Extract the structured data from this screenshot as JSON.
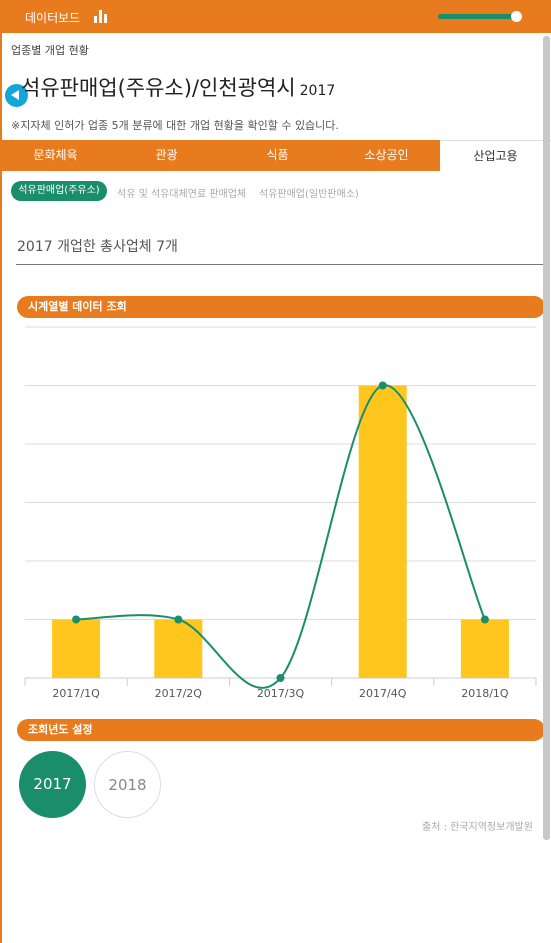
{
  "header": {
    "title": "데이터보드",
    "title_icon": "bar-chart-icon",
    "toggle_on": true
  },
  "breadcrumb": "업종별 개업 현황",
  "page": {
    "title": "석유판매업(주유소)/인천광역시",
    "year": "2017",
    "notice": "※지자체 인허가 업종 5개 분류에 대한 개업 현황을 확인할 수 있습니다."
  },
  "tabs": [
    {
      "label": "문화체육"
    },
    {
      "label": "관광"
    },
    {
      "label": "식품"
    },
    {
      "label": "소상공인"
    },
    {
      "label": "산업고용"
    }
  ],
  "subfilters": [
    {
      "label": "석유판매업(주유소)"
    },
    {
      "label": "석유 및 석유대체연료 판매업체"
    },
    {
      "label": "석유판매업(일반판매소)"
    }
  ],
  "summary": "2017 개업한 총사업체 7개",
  "sections": {
    "timeseries": "시계열별 데이터 조회",
    "year_setting": "조회년도 설정"
  },
  "chart_data": {
    "type": "bar",
    "categories": [
      "2017/1Q",
      "2017/2Q",
      "2017/3Q",
      "2017/4Q",
      "2018/1Q"
    ],
    "values": [
      1,
      1,
      0,
      5,
      1
    ],
    "overlay": "line",
    "ylim": [
      0,
      6
    ],
    "grid": true,
    "bar_color": "#ffc61e",
    "line_color": "#1a8d6a"
  },
  "years": [
    {
      "label": "2017",
      "selected": true
    },
    {
      "label": "2018",
      "selected": false
    }
  ],
  "source": "출처 : 한국지역정보개발원",
  "colors": {
    "accent": "#e87b1e",
    "primary": "#1a8d6a",
    "link_blue": "#14a6d8"
  }
}
